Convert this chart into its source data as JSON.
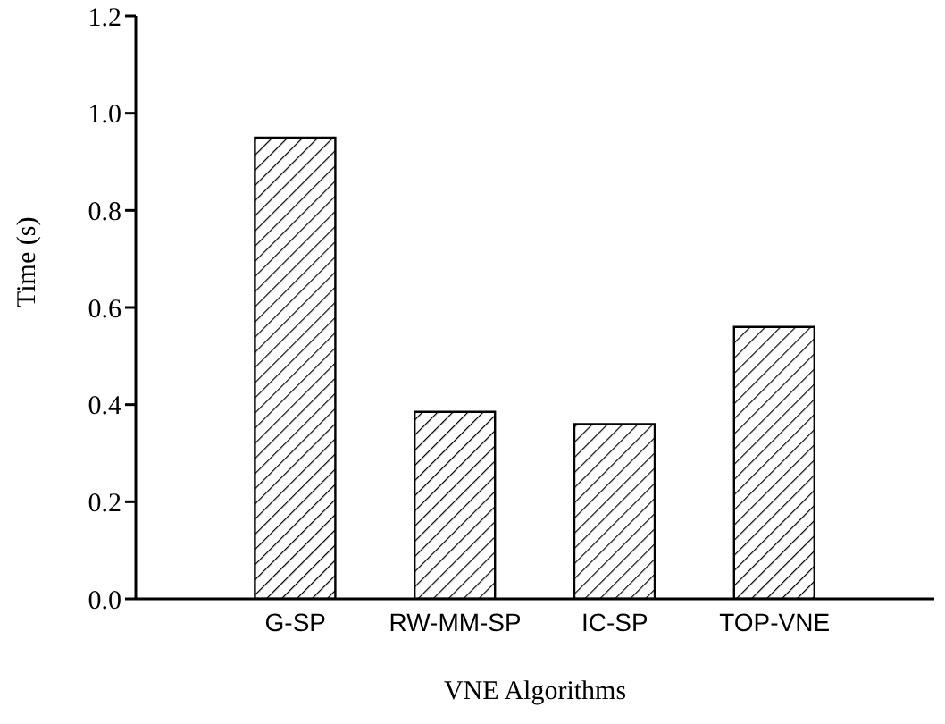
{
  "chart_data": {
    "type": "bar",
    "xlabel": "VNE Algorithms",
    "ylabel": "Time (s)",
    "categories": [
      "G-SP",
      "RW-MM-SP",
      "IC-SP",
      "TOP-VNE"
    ],
    "values": [
      0.95,
      0.385,
      0.36,
      0.56
    ],
    "color": "#000000",
    "ylim": [
      0,
      1.2
    ],
    "yticks": [
      {
        "value": 0,
        "label": "0.0"
      },
      {
        "value": 0.2,
        "label": "0.2"
      },
      {
        "value": 0.4,
        "label": "0.4"
      },
      {
        "value": 0.6,
        "label": "0.6"
      },
      {
        "value": 0.8,
        "label": "0.8"
      },
      {
        "value": 1,
        "label": "1.0"
      },
      {
        "value": 1.2,
        "label": "1.2"
      }
    ],
    "grid": false,
    "legend": false
  }
}
